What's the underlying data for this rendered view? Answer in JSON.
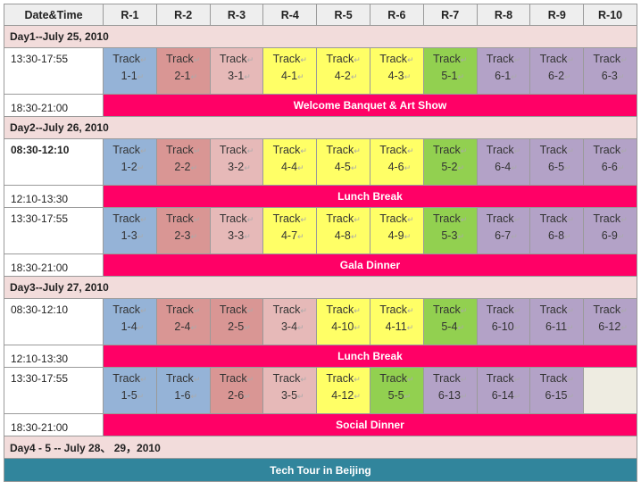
{
  "colors": {
    "blue": "#95b3d7",
    "dark_pink": "#d99694",
    "light_pink": "#e6b9b8",
    "yellow": "#ffff66",
    "green": "#92d050",
    "lavender": "#b3a2c7",
    "event_magenta": "#ff0066",
    "day_header": "#f2dcdb",
    "tech_tour": "#31859c",
    "empty_cell": "#eeece1"
  },
  "header": {
    "date_time": "Date&Time",
    "rooms": [
      "R-1",
      "R-2",
      "R-3",
      "R-4",
      "R-5",
      "R-6",
      "R-7",
      "R-8",
      "R-9",
      "R-10"
    ]
  },
  "track_word": "Track",
  "return_mark": "↵",
  "rows": [
    {
      "type": "day",
      "label": "Day1--July 25, 2010"
    },
    {
      "type": "sessions",
      "time": "13:30-17:55",
      "bold": false,
      "cells": [
        {
          "id": "1-1",
          "color": "#95b3d7"
        },
        {
          "id": "2-1",
          "color": "#d99694"
        },
        {
          "id": "3-1",
          "color": "#e6b9b8"
        },
        {
          "id": "4-1",
          "color": "#ffff66"
        },
        {
          "id": "4-2",
          "color": "#ffff66"
        },
        {
          "id": "4-3",
          "color": "#ffff66"
        },
        {
          "id": "5-1",
          "color": "#92d050"
        },
        {
          "id": "6-1",
          "color": "#b3a2c7"
        },
        {
          "id": "6-2",
          "color": "#b3a2c7"
        },
        {
          "id": "6-3",
          "color": "#b3a2c7"
        }
      ]
    },
    {
      "type": "event",
      "time": "18:30-21:00",
      "label": "Welcome Banquet & Art Show"
    },
    {
      "type": "day",
      "label": "Day2--July 26, 2010"
    },
    {
      "type": "sessions",
      "time": "08:30-12:10",
      "bold": true,
      "cells": [
        {
          "id": "1-2",
          "color": "#95b3d7"
        },
        {
          "id": "2-2",
          "color": "#d99694"
        },
        {
          "id": "3-2",
          "color": "#e6b9b8"
        },
        {
          "id": "4-4",
          "color": "#ffff66"
        },
        {
          "id": "4-5",
          "color": "#ffff66"
        },
        {
          "id": "4-6",
          "color": "#ffff66"
        },
        {
          "id": "5-2",
          "color": "#92d050"
        },
        {
          "id": "6-4",
          "color": "#b3a2c7"
        },
        {
          "id": "6-5",
          "color": "#b3a2c7"
        },
        {
          "id": "6-6",
          "color": "#b3a2c7"
        }
      ]
    },
    {
      "type": "event",
      "time": "12:10-13:30",
      "label": "Lunch Break"
    },
    {
      "type": "sessions",
      "time": "13:30-17:55",
      "bold": false,
      "cells": [
        {
          "id": "1-3",
          "color": "#95b3d7"
        },
        {
          "id": "2-3",
          "color": "#d99694"
        },
        {
          "id": "3-3",
          "color": "#e6b9b8"
        },
        {
          "id": "4-7",
          "color": "#ffff66"
        },
        {
          "id": "4-8",
          "color": "#ffff66"
        },
        {
          "id": "4-9",
          "color": "#ffff66"
        },
        {
          "id": "5-3",
          "color": "#92d050"
        },
        {
          "id": "6-7",
          "color": "#b3a2c7"
        },
        {
          "id": "6-8",
          "color": "#b3a2c7"
        },
        {
          "id": "6-9",
          "color": "#b3a2c7"
        }
      ]
    },
    {
      "type": "event",
      "time": "18:30-21:00",
      "label": "Gala Dinner"
    },
    {
      "type": "day",
      "label": "Day3--July 27, 2010"
    },
    {
      "type": "sessions",
      "time": "08:30-12:10",
      "bold": false,
      "cells": [
        {
          "id": "1-4",
          "color": "#95b3d7"
        },
        {
          "id": "2-4",
          "color": "#d99694"
        },
        {
          "id": "2-5",
          "color": "#d99694"
        },
        {
          "id": "3-4",
          "color": "#e6b9b8"
        },
        {
          "id": "4-10",
          "color": "#ffff66"
        },
        {
          "id": "4-11",
          "color": "#ffff66"
        },
        {
          "id": "5-4",
          "color": "#92d050"
        },
        {
          "id": "6-10",
          "color": "#b3a2c7"
        },
        {
          "id": "6-11",
          "color": "#b3a2c7"
        },
        {
          "id": "6-12",
          "color": "#b3a2c7"
        }
      ]
    },
    {
      "type": "event",
      "time": "12:10-13:30",
      "label": "Lunch Break"
    },
    {
      "type": "sessions",
      "time": "13:30-17:55",
      "bold": false,
      "cells": [
        {
          "id": "1-5",
          "color": "#95b3d7"
        },
        {
          "id": "1-6",
          "color": "#95b3d7"
        },
        {
          "id": "2-6",
          "color": "#d99694"
        },
        {
          "id": "3-5",
          "color": "#e6b9b8"
        },
        {
          "id": "4-12",
          "color": "#ffff66"
        },
        {
          "id": "5-5",
          "color": "#92d050"
        },
        {
          "id": "6-13",
          "color": "#b3a2c7"
        },
        {
          "id": "6-14",
          "color": "#b3a2c7"
        },
        {
          "id": "6-15",
          "color": "#b3a2c7"
        },
        {
          "id": "",
          "color": "#eeece1"
        }
      ]
    },
    {
      "type": "event",
      "time": "18:30-21:00",
      "label": "Social Dinner"
    },
    {
      "type": "day",
      "label": "Day4 - 5 -- July 28、 29，2010"
    },
    {
      "type": "tech",
      "label": "Tech Tour in Beijing"
    }
  ]
}
